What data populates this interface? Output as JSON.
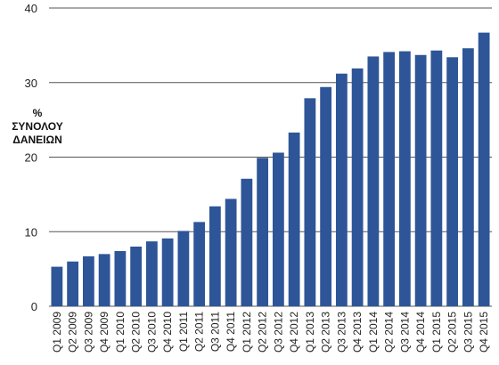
{
  "chart_data": {
    "type": "bar",
    "title": "",
    "xlabel": "",
    "ylabel_lines": [
      "%",
      "ΣΥΝΟΛΟΥ",
      "ΔΑΝΕΙΩΝ"
    ],
    "ylim": [
      0,
      40
    ],
    "yticks": [
      0,
      10,
      20,
      30,
      40
    ],
    "grid": true,
    "bar_color": "#2e5597",
    "grid_color": "#555555",
    "categories": [
      "Q1 2009",
      "Q2 2009",
      "Q3 2009",
      "Q4 2009",
      "Q1 2010",
      "Q2 2010",
      "Q3 2010",
      "Q4 2010",
      "Q1 2011",
      "Q2 2011",
      "Q3 2011",
      "Q4 2011",
      "Q1 2012",
      "Q2 2012",
      "Q3 2012",
      "Q4 2012",
      "Q1 2013",
      "Q2 2013",
      "Q3 2013",
      "Q4 2013",
      "Q1 2014",
      "Q2 2014",
      "Q3 2014",
      "Q4 2014",
      "Q1 2015",
      "Q2 2015",
      "Q3 2015",
      "Q4 2015"
    ],
    "values": [
      5.3,
      6.0,
      6.7,
      7.0,
      7.4,
      8.0,
      8.7,
      9.1,
      10.1,
      11.3,
      13.4,
      14.4,
      17.1,
      19.9,
      20.6,
      23.3,
      27.9,
      29.4,
      31.2,
      31.9,
      33.5,
      34.1,
      34.2,
      33.7,
      34.3,
      33.4,
      34.6,
      36.7
    ]
  }
}
